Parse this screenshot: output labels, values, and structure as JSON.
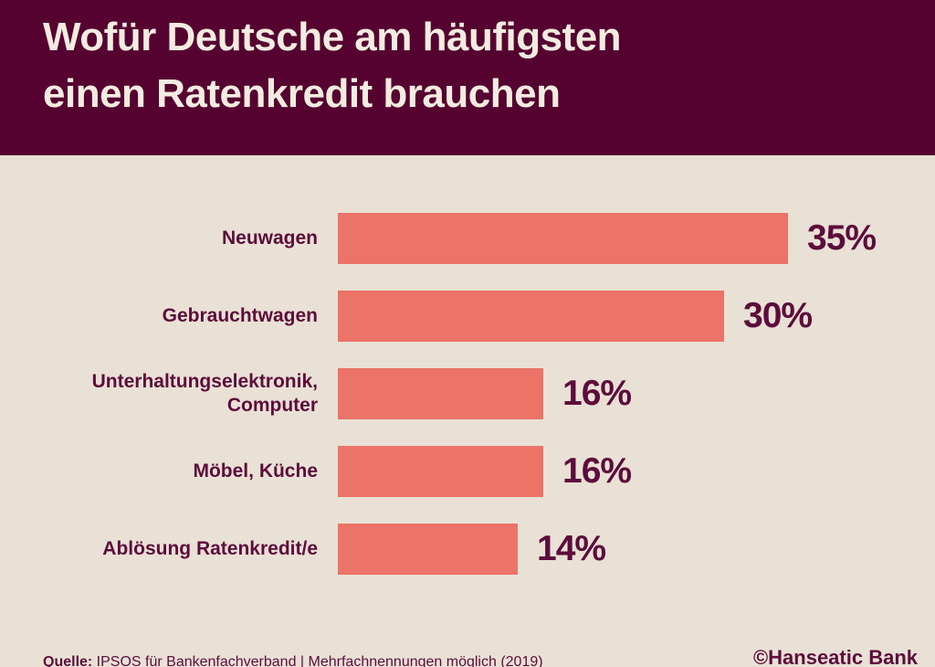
{
  "header": {
    "title_line1": "Wofür Deutsche am häufigsten",
    "title_line2": "einen Ratenkredit brauchen"
  },
  "chart_data": {
    "type": "bar",
    "orientation": "horizontal",
    "title": "Wofür Deutsche am häufigsten einen Ratenkredit brauchen",
    "categories": [
      "Neuwagen",
      "Gebrauchtwagen",
      "Unterhaltungselektronik, Computer",
      "Möbel, Küche",
      "Ablösung Ratenkredit/e"
    ],
    "values": [
      35,
      30,
      16,
      16,
      14
    ],
    "unit": "%",
    "xlim": [
      0,
      35
    ],
    "grid": false,
    "legend": false,
    "bars": [
      {
        "label_lines": [
          "Neuwagen"
        ],
        "value": 35,
        "display": "35%"
      },
      {
        "label_lines": [
          "Gebrauchtwagen"
        ],
        "value": 30,
        "display": "30%"
      },
      {
        "label_lines": [
          "Unterhaltungselektronik,",
          "Computer"
        ],
        "value": 16,
        "display": "16%"
      },
      {
        "label_lines": [
          "Möbel, Küche"
        ],
        "value": 16,
        "display": "16%"
      },
      {
        "label_lines": [
          "Ablösung Ratenkredit/e"
        ],
        "value": 14,
        "display": "14%"
      }
    ]
  },
  "footer": {
    "source_label": "Quelle:",
    "source_text": " IPSOS für Bankenfachverband | Mehrfachnennungen möglich (2019)",
    "copyright": "©Hanseatic Bank"
  },
  "colors": {
    "header_bg": "#560230",
    "background": "#E9E1D5",
    "bar": "#EC7367",
    "text": "#5D0C3C",
    "title_text": "#F3ECE1"
  }
}
